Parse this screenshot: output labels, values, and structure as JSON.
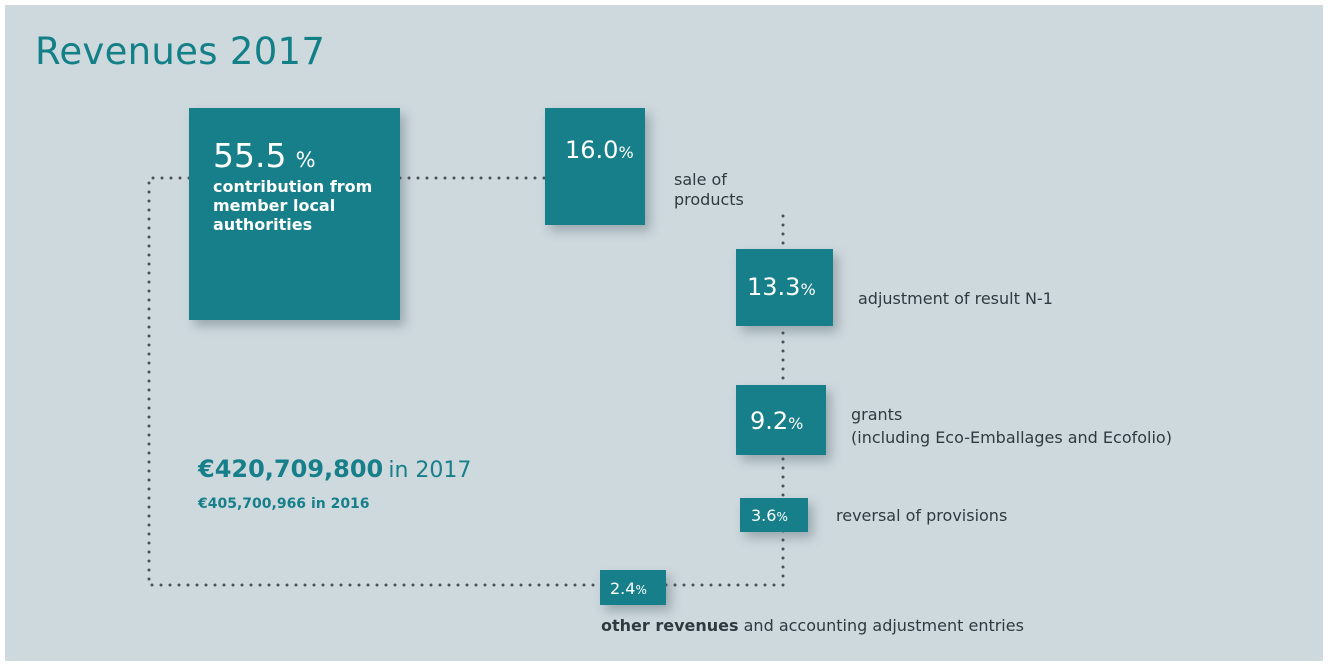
{
  "chart_data": {
    "type": "treemap",
    "title": "Revenues 2017",
    "unit": "%",
    "segments": [
      {
        "value": 55.5,
        "value_text": "55.5",
        "unit": "%",
        "label": "contribution from member local authorities"
      },
      {
        "value": 16.0,
        "value_text": "16.0",
        "unit": "%",
        "label": "sale of products"
      },
      {
        "value": 13.3,
        "value_text": "13.3",
        "unit": "%",
        "label": "adjustment of result N-1"
      },
      {
        "value": 9.2,
        "value_text": "9.2",
        "unit": "%",
        "label": "grants",
        "sublabel": "(including Eco-Emballages and Ecofolio)"
      },
      {
        "value": 3.6,
        "value_text": "3.6",
        "unit": "%",
        "label": "reversal of provisions"
      },
      {
        "value": 2.4,
        "value_text": "2.4",
        "unit": "%",
        "label_bold": "other revenues",
        "label": "and accounting adjustment entries"
      }
    ],
    "total": {
      "amount_2017": "€420,709,800",
      "year_2017_text": "in 2017",
      "amount_2016": "€405,700,966",
      "year_2016_text": "in 2016"
    }
  },
  "colors": {
    "background": "#ced9de",
    "box": "#167f89",
    "title": "#137f87",
    "label_text": "#2f3a3f",
    "dots": "#4a5258"
  }
}
